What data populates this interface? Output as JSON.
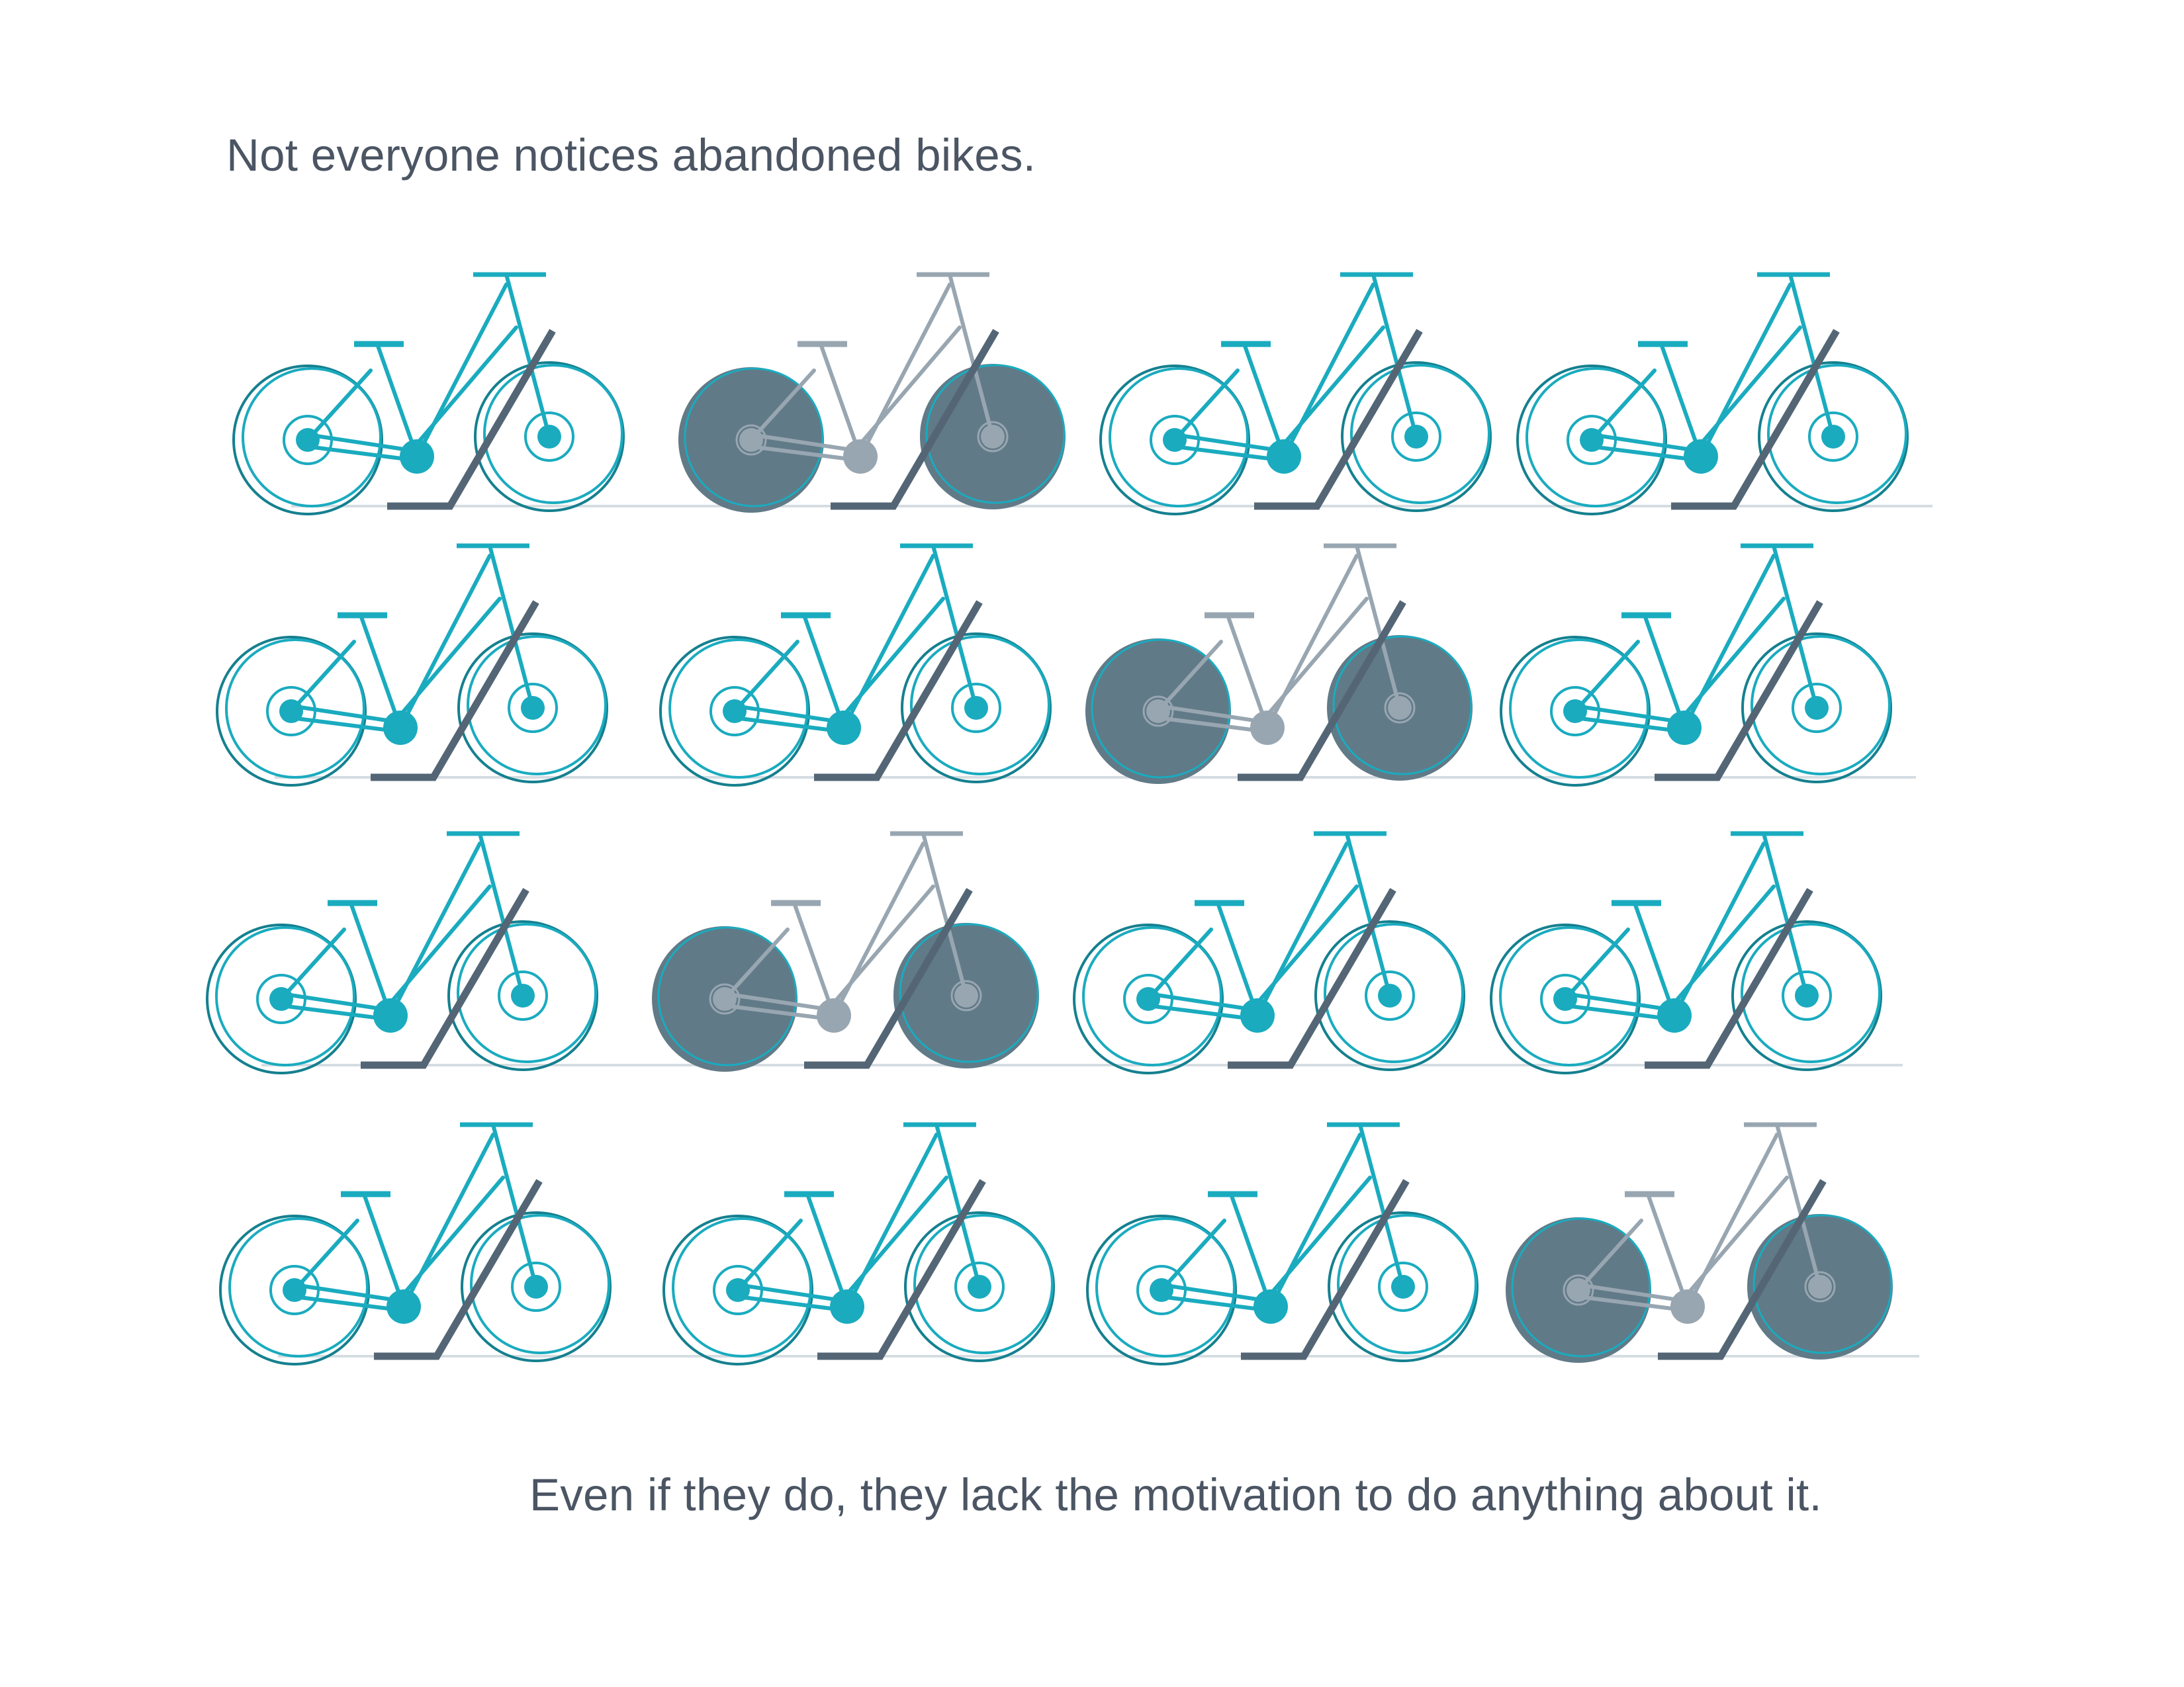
{
  "captions": {
    "headline": "Not everyone notices abandoned bikes.",
    "footnote": "Even if they do, they lack the motivation to do anything about it."
  },
  "colors": {
    "background": "#ffffff",
    "text": "#4b5563",
    "bike_active": "#1aabbf",
    "bike_active_dark_rim": "#15808f",
    "bike_abandoned_frame": "#98a6b1",
    "bike_abandoned_wheel_fill": "#617a87",
    "rack": "#546675",
    "ground": "#d5dde2"
  },
  "icons": {
    "bike": "bicycle-icon",
    "rack": "bike-rack-icon"
  },
  "bike_grid": {
    "rows": [
      {
        "bikes": [
          {
            "state": "parked"
          },
          {
            "state": "abandoned"
          },
          {
            "state": "parked"
          },
          {
            "state": "parked"
          }
        ]
      },
      {
        "bikes": [
          {
            "state": "parked"
          },
          {
            "state": "parked"
          },
          {
            "state": "abandoned"
          },
          {
            "state": "parked"
          }
        ]
      },
      {
        "bikes": [
          {
            "state": "parked"
          },
          {
            "state": "abandoned"
          },
          {
            "state": "parked"
          },
          {
            "state": "parked"
          }
        ]
      },
      {
        "bikes": [
          {
            "state": "parked"
          },
          {
            "state": "parked"
          },
          {
            "state": "parked"
          },
          {
            "state": "abandoned"
          }
        ]
      }
    ]
  }
}
